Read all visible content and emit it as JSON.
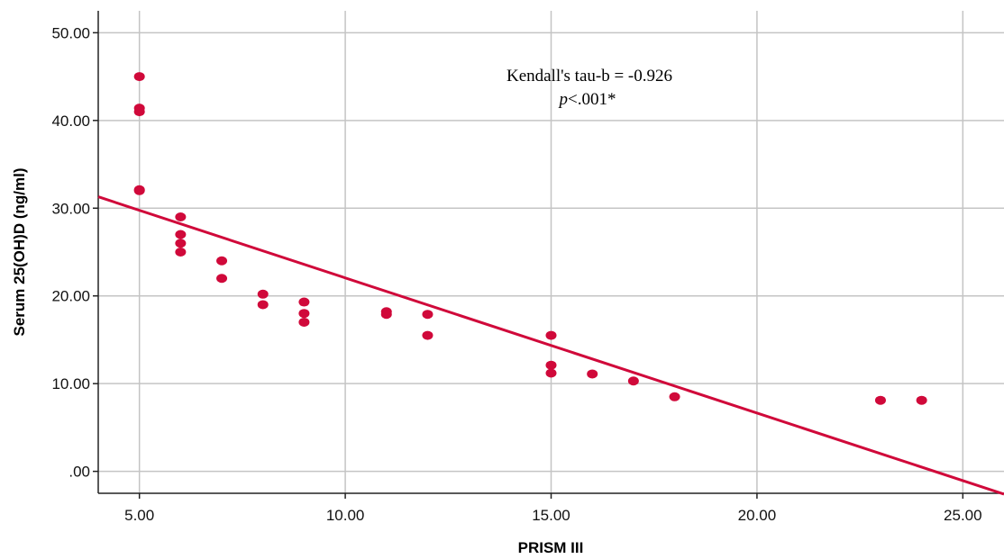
{
  "chart_data": {
    "type": "scatter",
    "title": "",
    "xlabel": "PRISM III",
    "ylabel": "Serum 25(OH)D (ng/ml)",
    "xlim": [
      4,
      26
    ],
    "ylim": [
      -2.5,
      52.5
    ],
    "x_ticks": [
      5,
      10,
      15,
      20,
      25
    ],
    "x_tick_labels": [
      "5.00",
      "10.00",
      "15.00",
      "20.00",
      "25.00"
    ],
    "y_ticks": [
      0,
      10,
      20,
      30,
      40,
      50
    ],
    "y_tick_labels": [
      ".00",
      "10.00",
      "20.00",
      "30.00",
      "40.00",
      "50.00"
    ],
    "grid": true,
    "legend": "none",
    "point_color": "#d0093a",
    "line_color": "#d0093a",
    "points": [
      {
        "x": 5,
        "y": 45.0
      },
      {
        "x": 5,
        "y": 41.4
      },
      {
        "x": 5,
        "y": 41.0
      },
      {
        "x": 5,
        "y": 32.1
      },
      {
        "x": 5,
        "y": 32.0
      },
      {
        "x": 6,
        "y": 29.0
      },
      {
        "x": 6,
        "y": 27.0
      },
      {
        "x": 6,
        "y": 26.0
      },
      {
        "x": 6,
        "y": 25.0
      },
      {
        "x": 7,
        "y": 24.0
      },
      {
        "x": 7,
        "y": 22.0
      },
      {
        "x": 8,
        "y": 20.2
      },
      {
        "x": 8,
        "y": 19.0
      },
      {
        "x": 9,
        "y": 19.3
      },
      {
        "x": 9,
        "y": 18.0
      },
      {
        "x": 9,
        "y": 17.0
      },
      {
        "x": 11,
        "y": 18.2
      },
      {
        "x": 11,
        "y": 17.9
      },
      {
        "x": 12,
        "y": 17.9
      },
      {
        "x": 12,
        "y": 15.5
      },
      {
        "x": 15,
        "y": 15.5
      },
      {
        "x": 15,
        "y": 12.1
      },
      {
        "x": 15,
        "y": 11.2
      },
      {
        "x": 16,
        "y": 11.1
      },
      {
        "x": 17,
        "y": 10.3
      },
      {
        "x": 18,
        "y": 8.5
      },
      {
        "x": 23,
        "y": 8.1
      },
      {
        "x": 24,
        "y": 8.1
      }
    ],
    "fit_line": {
      "x": [
        4,
        26
      ],
      "y": [
        31.3,
        -2.6
      ]
    },
    "annotations": {
      "line1": "Kendall's tau-b = -0.926",
      "line2_italic": "p",
      "line2_rest": "<.001*"
    }
  }
}
